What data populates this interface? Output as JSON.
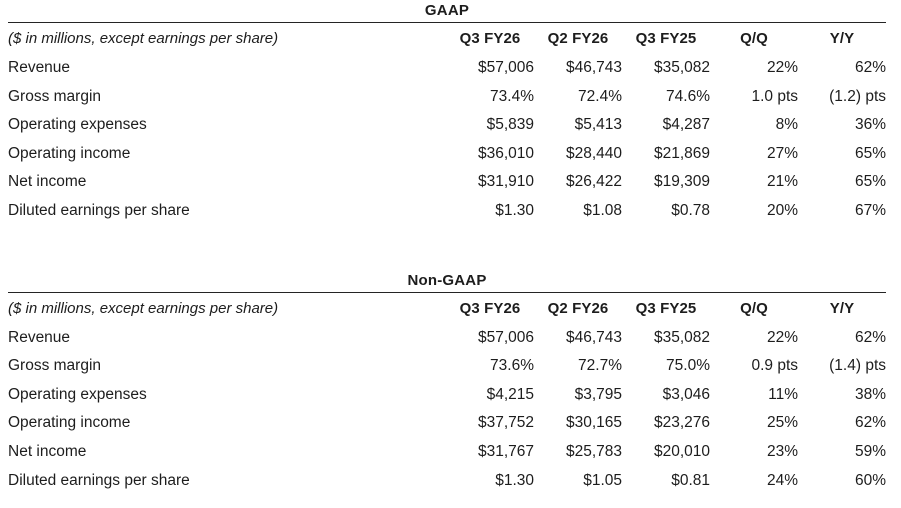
{
  "colors": {
    "text": "#1d1d1d",
    "rule": "#242424",
    "background": "#ffffff"
  },
  "sections": [
    {
      "title": "GAAP",
      "note": "($ in millions, except earnings per share)",
      "columns": [
        "Q3 FY26",
        "Q2 FY26",
        "Q3 FY25",
        "Q/Q",
        "Y/Y"
      ],
      "rows": [
        {
          "label": "Revenue",
          "values": [
            "$57,006",
            "$46,743",
            "$35,082",
            "22%",
            "62%"
          ]
        },
        {
          "label": "Gross margin",
          "values": [
            "73.4%",
            "72.4%",
            "74.6%",
            "1.0 pts",
            "(1.2) pts"
          ]
        },
        {
          "label": "Operating expenses",
          "values": [
            "$5,839",
            "$5,413",
            "$4,287",
            "8%",
            "36%"
          ]
        },
        {
          "label": "Operating income",
          "values": [
            "$36,010",
            "$28,440",
            "$21,869",
            "27%",
            "65%"
          ]
        },
        {
          "label": "Net income",
          "values": [
            "$31,910",
            "$26,422",
            "$19,309",
            "21%",
            "65%"
          ]
        },
        {
          "label": "Diluted earnings per share",
          "values": [
            "$1.30",
            "$1.08",
            "$0.78",
            "20%",
            "67%"
          ]
        }
      ]
    },
    {
      "title": "Non-GAAP",
      "note": "($ in millions, except earnings per share)",
      "columns": [
        "Q3 FY26",
        "Q2 FY26",
        "Q3 FY25",
        "Q/Q",
        "Y/Y"
      ],
      "rows": [
        {
          "label": "Revenue",
          "values": [
            "$57,006",
            "$46,743",
            "$35,082",
            "22%",
            "62%"
          ]
        },
        {
          "label": "Gross margin",
          "values": [
            "73.6%",
            "72.7%",
            "75.0%",
            "0.9 pts",
            "(1.4) pts"
          ]
        },
        {
          "label": "Operating expenses",
          "values": [
            "$4,215",
            "$3,795",
            "$3,046",
            "11%",
            "38%"
          ]
        },
        {
          "label": "Operating income",
          "values": [
            "$37,752",
            "$30,165",
            "$23,276",
            "25%",
            "62%"
          ]
        },
        {
          "label": "Net income",
          "values": [
            "$31,767",
            "$25,783",
            "$20,010",
            "23%",
            "59%"
          ]
        },
        {
          "label": "Diluted earnings per share",
          "values": [
            "$1.30",
            "$1.05",
            "$0.81",
            "24%",
            "60%"
          ]
        }
      ]
    }
  ]
}
